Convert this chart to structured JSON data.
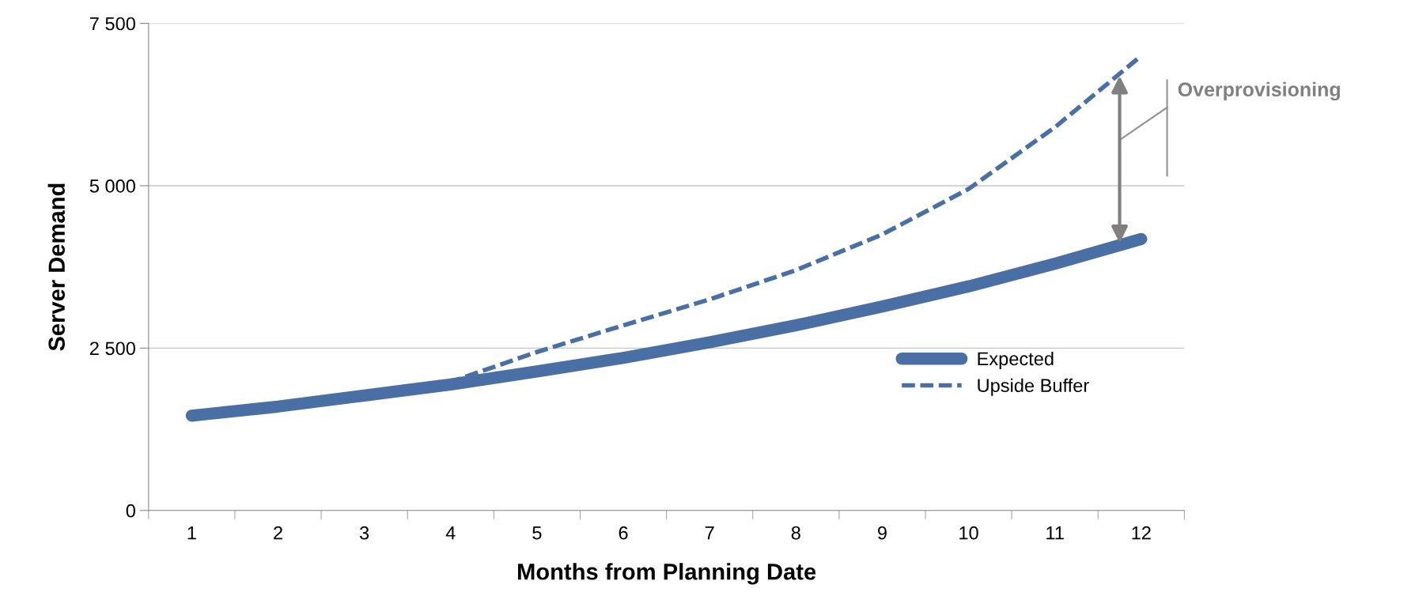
{
  "chart_data": {
    "type": "line",
    "xlabel": "Months from Planning Date",
    "ylabel": "Server Demand",
    "categories": [
      "1",
      "2",
      "3",
      "4",
      "5",
      "6",
      "7",
      "8",
      "9",
      "10",
      "11",
      "12"
    ],
    "series": [
      {
        "name": "Expected",
        "color": "#4a6fa5",
        "line_style": "solid",
        "values": [
          1460,
          1600,
          1770,
          1940,
          2140,
          2350,
          2590,
          2850,
          3140,
          3450,
          3800,
          4180
        ]
      },
      {
        "name": "Upside Buffer",
        "color": "#4a6fa5",
        "line_style": "dashed",
        "values": [
          1460,
          1600,
          1770,
          1980,
          2440,
          2850,
          3250,
          3700,
          4250,
          4950,
          5900,
          7000
        ]
      }
    ],
    "ylim": [
      0,
      7500
    ],
    "yticks": [
      0,
      {
        "value": 2500,
        "label": "2 500"
      },
      {
        "value": 5000,
        "label": "5 000"
      },
      {
        "value": 7500,
        "label": "7 500"
      }
    ],
    "grid": "y",
    "legend": "bottom right",
    "marker": "none",
    "annotations": [
      "Overprovisioning"
    ]
  }
}
